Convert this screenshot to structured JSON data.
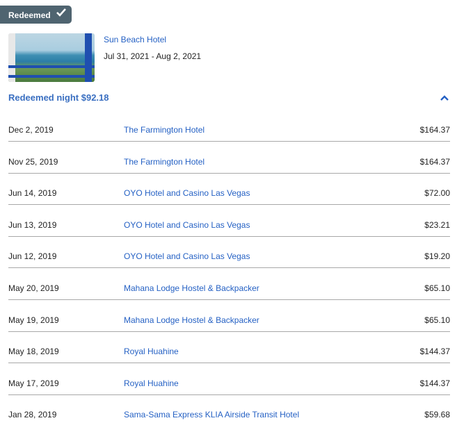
{
  "badge": {
    "label": "Redeemed",
    "icon": "checkmark-icon"
  },
  "stay": {
    "hotel": "Sun Beach Hotel",
    "dates": "Jul 31, 2021 - Aug 2, 2021"
  },
  "summary": {
    "label": "Redeemed night $92.18",
    "icon": "chevron-up-icon"
  },
  "colors": {
    "link": "#2561c4",
    "badge": "#4f6470",
    "summary": "#3a6fc1"
  },
  "rows": [
    {
      "date": "Dec 2, 2019",
      "hotel": "The Farmington Hotel",
      "amount": "$164.37"
    },
    {
      "date": "Nov 25, 2019",
      "hotel": "The Farmington Hotel",
      "amount": "$164.37"
    },
    {
      "date": "Jun 14, 2019",
      "hotel": "OYO Hotel and Casino Las Vegas",
      "amount": "$72.00"
    },
    {
      "date": "Jun 13, 2019",
      "hotel": "OYO Hotel and Casino Las Vegas",
      "amount": "$23.21"
    },
    {
      "date": "Jun 12, 2019",
      "hotel": "OYO Hotel and Casino Las Vegas",
      "amount": "$19.20"
    },
    {
      "date": "May 20, 2019",
      "hotel": "Mahana Lodge Hostel & Backpacker",
      "amount": "$65.10"
    },
    {
      "date": "May 19, 2019",
      "hotel": "Mahana Lodge Hostel & Backpacker",
      "amount": "$65.10"
    },
    {
      "date": "May 18, 2019",
      "hotel": "Royal Huahine",
      "amount": "$144.37"
    },
    {
      "date": "May 17, 2019",
      "hotel": "Royal Huahine",
      "amount": "$144.37"
    },
    {
      "date": "Jan 28, 2019",
      "hotel": "Sama-Sama Express KLIA Airside Transit Hotel",
      "amount": "$59.68"
    }
  ]
}
